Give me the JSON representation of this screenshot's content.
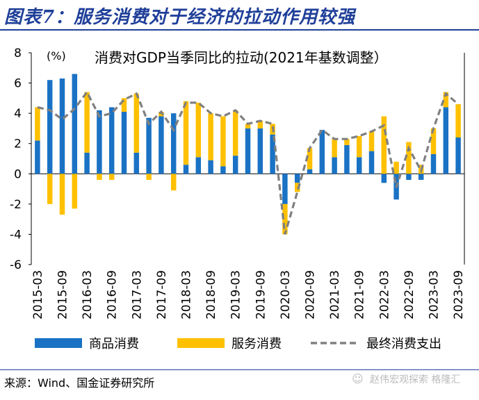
{
  "header": {
    "title": "图表7：服务消费对于经济的拉动作用较强"
  },
  "footer": {
    "source": "来源：Wind、国金证券研究所",
    "watermark": "赵伟宏观探索 格隆汇"
  },
  "chart_data": {
    "type": "bar",
    "title": "消费对GDP当季同比的拉动(2021年基数调整）",
    "unit_label": "(%)",
    "ylim": [
      -6,
      8
    ],
    "yticks": [
      -6,
      -4,
      -2,
      0,
      2,
      4,
      6,
      8
    ],
    "grid": false,
    "categories": [
      "2015-03",
      "2015-06",
      "2015-09",
      "2015-12",
      "2016-03",
      "2016-06",
      "2016-09",
      "2016-12",
      "2017-03",
      "2017-06",
      "2017-09",
      "2017-12",
      "2018-03",
      "2018-06",
      "2018-09",
      "2018-12",
      "2019-03",
      "2019-06",
      "2019-09",
      "2019-12",
      "2020-03",
      "2020-06",
      "2020-09",
      "2020-12",
      "2021-03",
      "2021-06",
      "2021-09",
      "2021-12",
      "2022-03",
      "2022-06",
      "2022-09",
      "2022-12",
      "2023-03",
      "2023-06",
      "2023-09"
    ],
    "xticklabels": [
      "2015-03",
      "2015-09",
      "2016-03",
      "2016-09",
      "2017-03",
      "2017-09",
      "2018-03",
      "2018-09",
      "2019-03",
      "2019-09",
      "2020-03",
      "2020-09",
      "2021-03",
      "2021-09",
      "2022-03",
      "2022-09",
      "2023-03",
      "2023-09"
    ],
    "series": [
      {
        "name": "商品消费",
        "kind": "bar",
        "color": "#1a72c4",
        "values": [
          2.2,
          6.2,
          6.3,
          6.6,
          1.4,
          4.2,
          4.4,
          4.1,
          1.4,
          3.7,
          3.8,
          4.0,
          0.6,
          1.1,
          0.9,
          0.5,
          1.2,
          3.0,
          3.0,
          2.6,
          -2.0,
          -0.6,
          0.3,
          2.9,
          1.1,
          1.9,
          1.1,
          1.5,
          -0.6,
          -1.7,
          -0.4,
          -0.4,
          1.3,
          4.4,
          2.4
        ]
      },
      {
        "name": "服务消费",
        "kind": "bar",
        "color": "#ffc000",
        "values": [
          2.2,
          -2.0,
          -2.7,
          -2.3,
          4.0,
          -0.4,
          -0.4,
          0.9,
          3.9,
          -0.4,
          0.3,
          -1.1,
          4.2,
          3.6,
          3.1,
          3.3,
          3.0,
          0.3,
          0.5,
          0.7,
          -2.0,
          -0.6,
          1.4,
          0.0,
          1.2,
          0.4,
          1.4,
          1.3,
          3.8,
          0.8,
          2.1,
          0.6,
          1.7,
          1.0,
          2.2
        ]
      },
      {
        "name": "最终消费支出",
        "kind": "line",
        "color": "#808080",
        "values": [
          4.4,
          4.2,
          3.6,
          4.3,
          5.4,
          3.8,
          4.0,
          4.9,
          5.3,
          3.3,
          4.1,
          2.9,
          4.7,
          4.7,
          4.0,
          3.8,
          4.2,
          3.3,
          3.5,
          3.3,
          -4.0,
          -1.2,
          1.7,
          2.9,
          2.3,
          2.3,
          2.5,
          2.8,
          3.2,
          -0.9,
          1.7,
          0.2,
          3.0,
          5.3,
          4.6
        ]
      }
    ],
    "legend": {
      "position": "bottom",
      "items": [
        "商品消费",
        "服务消费",
        "最终消费支出"
      ]
    }
  }
}
